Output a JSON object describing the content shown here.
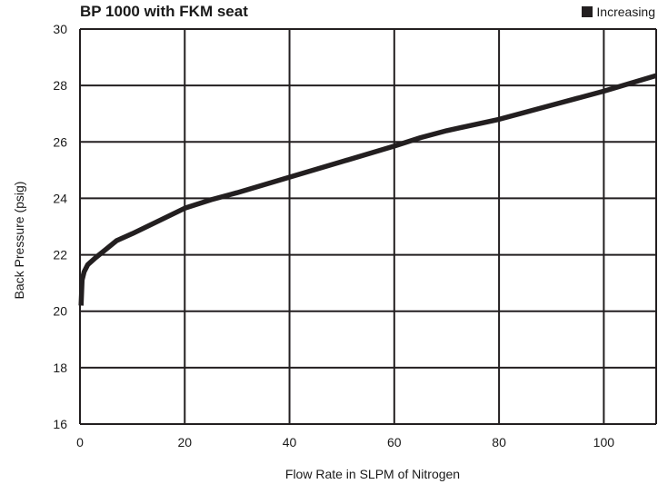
{
  "chart_data": {
    "type": "line",
    "title": "BP 1000 with FKM seat",
    "xlabel": "Flow Rate in SLPM of Nitrogen",
    "ylabel": "Back Pressure (psig)",
    "xlim": [
      0,
      110
    ],
    "ylim": [
      16,
      30
    ],
    "x_ticks": [
      0,
      20,
      40,
      60,
      80,
      100
    ],
    "y_ticks": [
      16,
      18,
      20,
      22,
      24,
      26,
      28,
      30
    ],
    "x_gridlines": [
      0,
      20,
      40,
      60,
      80,
      100,
      110
    ],
    "grid": true,
    "legend": {
      "placement": "top-right",
      "entries": [
        "Increasing"
      ]
    },
    "series": [
      {
        "name": "Increasing",
        "color": "#231f20",
        "x": [
          0.2,
          0.4,
          0.8,
          1.5,
          3,
          5,
          7,
          10,
          15,
          20,
          25,
          30,
          40,
          50,
          60,
          65,
          70,
          80,
          90,
          100,
          110
        ],
        "y": [
          20.2,
          21.1,
          21.4,
          21.65,
          21.9,
          22.2,
          22.5,
          22.75,
          23.2,
          23.65,
          23.95,
          24.2,
          24.75,
          25.3,
          25.85,
          26.15,
          26.4,
          26.8,
          27.3,
          27.8,
          28.35
        ]
      }
    ]
  }
}
